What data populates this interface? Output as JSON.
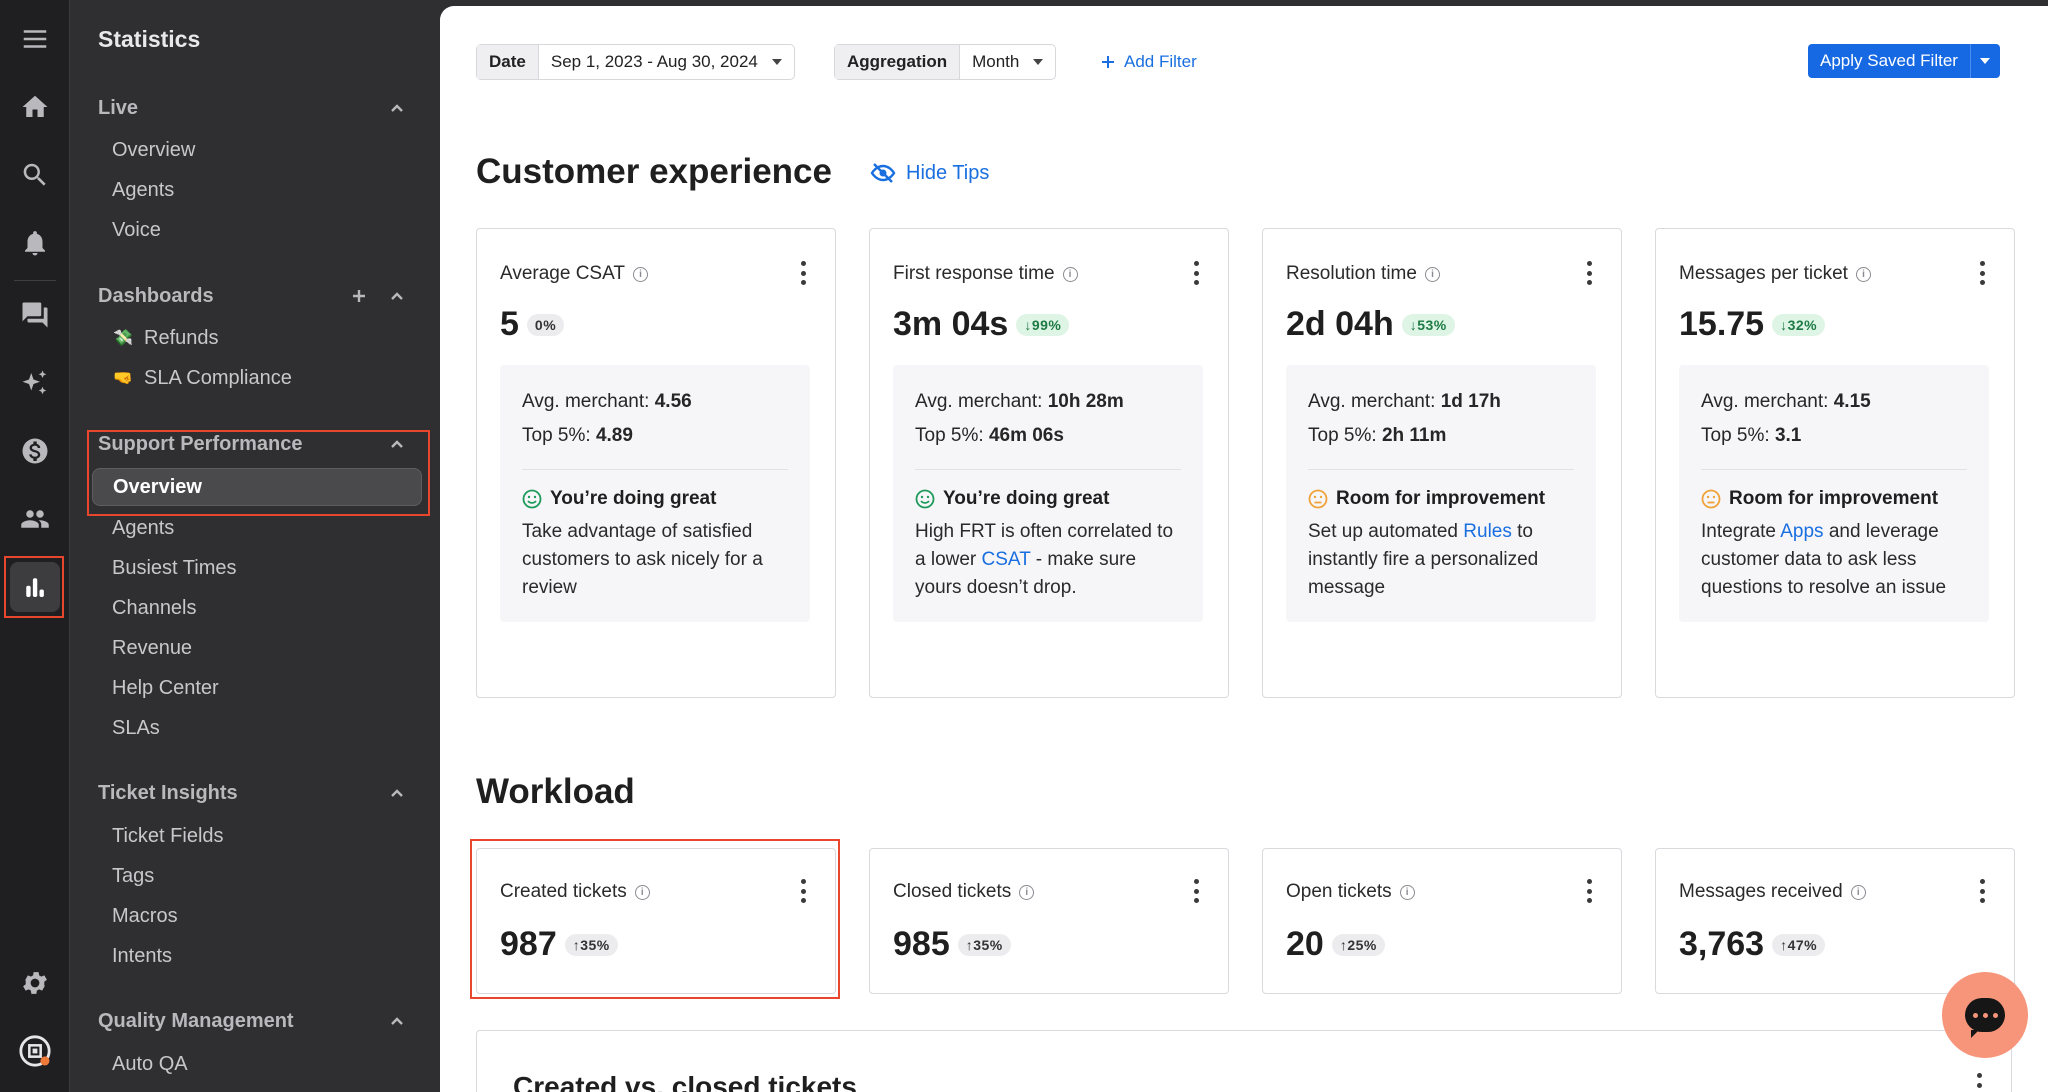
{
  "sidebar": {
    "title": "Statistics",
    "sections": {
      "live": {
        "label": "Live",
        "items": [
          "Overview",
          "Agents",
          "Voice"
        ]
      },
      "dashboards": {
        "label": "Dashboards",
        "items": [
          {
            "emoji": "💸",
            "label": "Refunds"
          },
          {
            "emoji": "🤜",
            "label": "SLA Compliance"
          }
        ]
      },
      "support": {
        "label": "Support Performance",
        "items": [
          "Overview",
          "Agents",
          "Busiest Times",
          "Channels",
          "Revenue",
          "Help Center",
          "SLAs"
        ]
      },
      "insights": {
        "label": "Ticket Insights",
        "items": [
          "Ticket Fields",
          "Tags",
          "Macros",
          "Intents"
        ]
      },
      "quality": {
        "label": "Quality Management",
        "items": [
          "Auto QA"
        ]
      }
    }
  },
  "filters": {
    "date_label": "Date",
    "date_value": "Sep 1, 2023 - Aug 30, 2024",
    "agg_label": "Aggregation",
    "agg_value": "Month",
    "add_filter": "Add Filter",
    "apply_saved": "Apply Saved Filter"
  },
  "cx": {
    "title": "Customer experience",
    "hide_tips": "Hide Tips",
    "cards": [
      {
        "title": "Average CSAT",
        "value": "5",
        "badge": "0%",
        "merchant_label": "Avg. merchant:",
        "merchant": "4.56",
        "top_label": "Top 5%:",
        "top": "4.89",
        "status": "You’re doing great",
        "text1": "Take advantage of satisfied customers to ask nicely for a review",
        "link": "",
        "text2": ""
      },
      {
        "title": "First response time",
        "value": "3m 04s",
        "badge": "↓99%",
        "merchant_label": "Avg. merchant:",
        "merchant": "10h 28m",
        "top_label": "Top 5%:",
        "top": "46m 06s",
        "status": "You’re doing great",
        "text1": "High FRT is often correlated to a lower ",
        "link": "CSAT",
        "text2": " - make sure yours doesn’t drop."
      },
      {
        "title": "Resolution time",
        "value": "2d 04h",
        "badge": "↓53%",
        "merchant_label": "Avg. merchant:",
        "merchant": "1d 17h",
        "top_label": "Top 5%:",
        "top": "2h 11m",
        "status": "Room for improvement",
        "text1": "Set up automated ",
        "link": "Rules",
        "text2": " to instantly fire a personalized message"
      },
      {
        "title": "Messages per ticket",
        "value": "15.75",
        "badge": "↓32%",
        "merchant_label": "Avg. merchant:",
        "merchant": "4.15",
        "top_label": "Top 5%:",
        "top": "3.1",
        "status": "Room for improvement",
        "text1": "Integrate ",
        "link": "Apps",
        "text2": " and leverage customer data to ask less questions to resolve an issue"
      }
    ]
  },
  "workload": {
    "title": "Workload",
    "cards": [
      {
        "title": "Created tickets",
        "value": "987",
        "badge": "↑35%"
      },
      {
        "title": "Closed tickets",
        "value": "985",
        "badge": "↑35%"
      },
      {
        "title": "Open tickets",
        "value": "20",
        "badge": "↑25%"
      },
      {
        "title": "Messages received",
        "value": "3,763",
        "badge": "↑47%"
      }
    ]
  },
  "bottom_title": "Created vs. closed tickets",
  "colors": {
    "accent": "#1668e3",
    "highlight": "#e8472d",
    "positive": "#1e7a44",
    "warn": "#f0a23a"
  }
}
